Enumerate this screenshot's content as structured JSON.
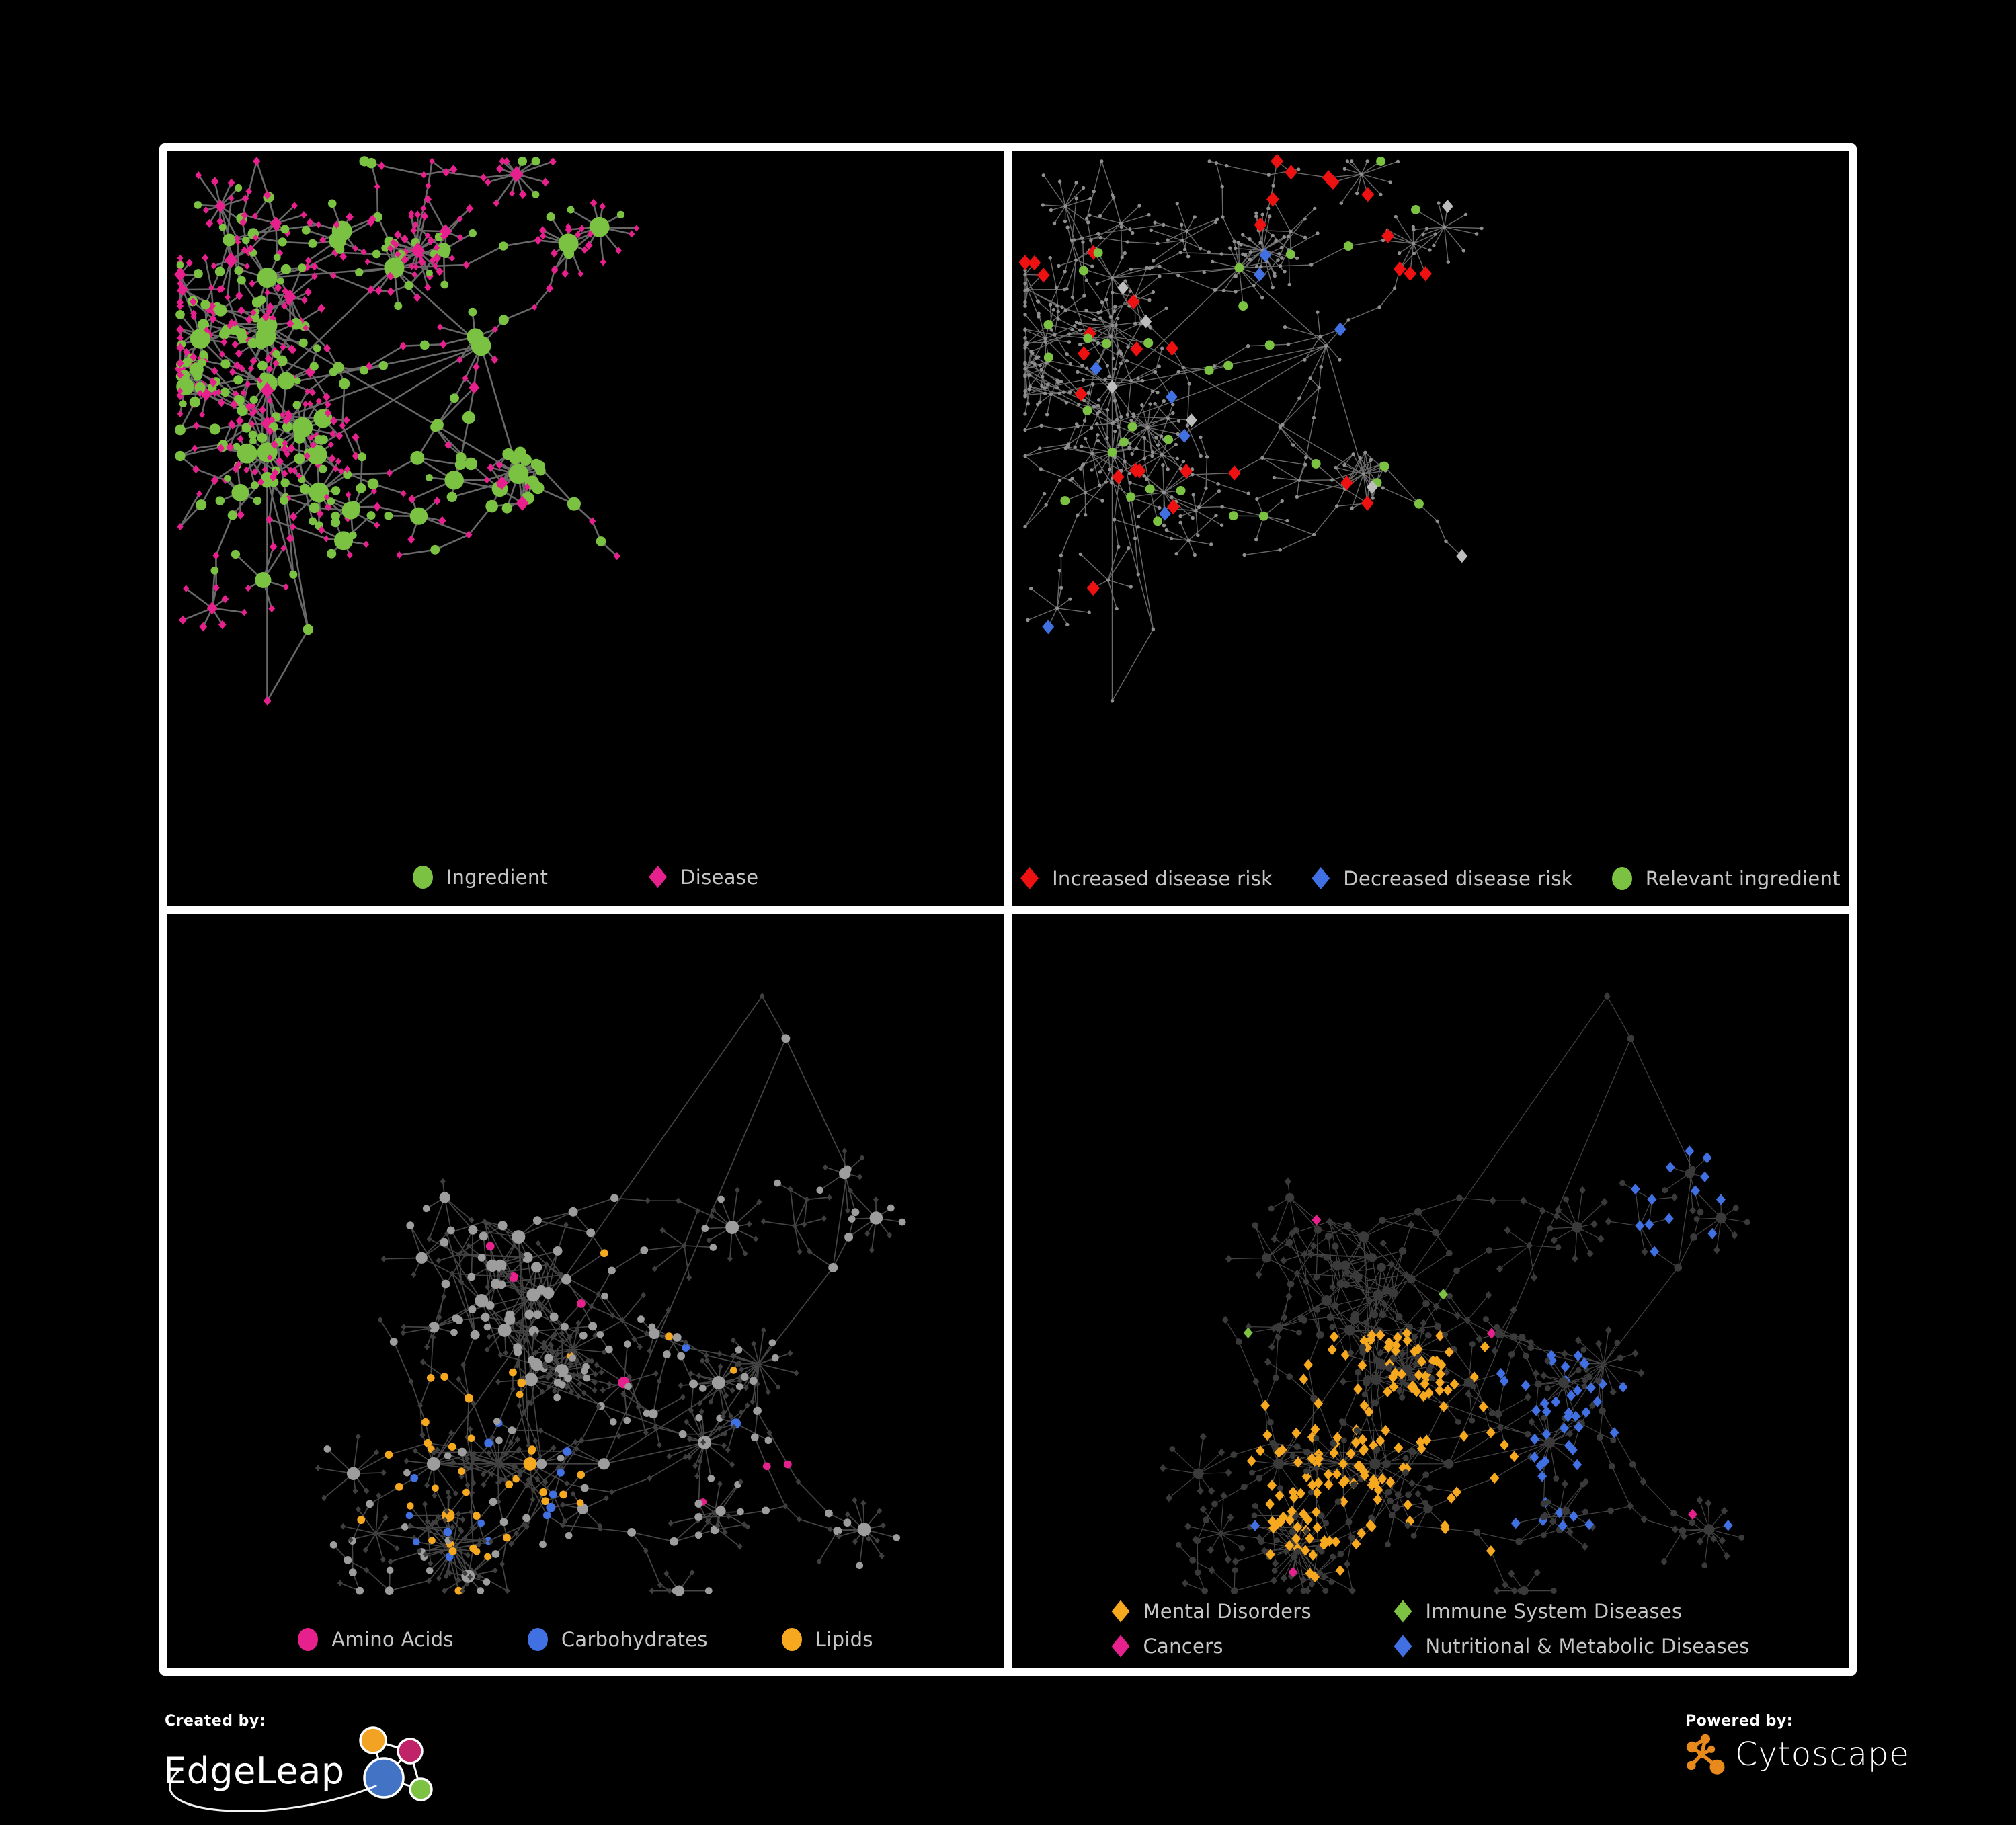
{
  "canvas": {
    "background": "#000000",
    "frame_color": "#ffffff"
  },
  "layouts": {
    "A": {
      "seed": 20,
      "hubs": 13,
      "super_bursts": 2,
      "max_nodes": 560
    },
    "B": {
      "seed": 77,
      "hubs": 14,
      "super_bursts": 3,
      "max_nodes": 560
    }
  },
  "panels": [
    {
      "id": "ingredient-disease",
      "layout": "A",
      "style": {
        "edge_color": "#737373",
        "edge_width": 2.6,
        "edge_opacity": 0.9,
        "ingredient_color": "#7cc242",
        "disease_color": "#e6208c"
      },
      "legend": [
        {
          "label": "Ingredient",
          "shape": "circle",
          "color": "#7cc242"
        },
        {
          "label": "Disease",
          "shape": "diamond",
          "color": "#e6208c"
        }
      ]
    },
    {
      "id": "disease-risk",
      "layout": "A",
      "style": {
        "edge_color": "#858585",
        "edge_width": 1.4,
        "edge_opacity": 0.8,
        "base_node_color": "#8f8f8f",
        "increased_color": "#ee1111",
        "decreased_color": "#4170e2",
        "neutral_color": "#bdbdbd",
        "relevant_color": "#7cc242"
      },
      "legend": [
        {
          "label": "Increased disease risk",
          "shape": "diamond",
          "color": "#ee1111"
        },
        {
          "label": "Decreased disease risk",
          "shape": "diamond",
          "color": "#4170e2"
        },
        {
          "label": "Relevant ingredient",
          "shape": "circle",
          "color": "#7cc242"
        }
      ]
    },
    {
      "id": "ingredient-classes",
      "layout": "B",
      "style": {
        "edge_color": "#8a8a8a",
        "edge_width": 1.7,
        "edge_opacity": 0.5,
        "ingredient_base_color": "#9d9d9d",
        "disease_dim_color": "#3f3f3f",
        "amino_color": "#e6208c",
        "carb_color": "#4170e2",
        "lipid_color": "#f6a81f"
      },
      "legend": [
        {
          "label": "Amino Acids",
          "shape": "circle",
          "color": "#e6208c"
        },
        {
          "label": "Carbohydrates",
          "shape": "circle",
          "color": "#4170e2"
        },
        {
          "label": "Lipids",
          "shape": "circle",
          "color": "#f6a81f"
        }
      ]
    },
    {
      "id": "disease-classes",
      "layout": "B",
      "style": {
        "edge_color": "#9a9a9a",
        "edge_width": 1.2,
        "edge_opacity": 0.45,
        "dim_color": "#3a3a3a",
        "mental_color": "#f6a81f",
        "immune_color": "#7dc242",
        "cancer_color": "#e6208c",
        "nutritional_color": "#4170e2"
      },
      "legend": [
        {
          "label": "Mental Disorders",
          "shape": "diamond",
          "color": "#f6a81f"
        },
        {
          "label": "Immune System Diseases",
          "shape": "diamond",
          "color": "#7dc242"
        },
        {
          "label": "Cancers",
          "shape": "diamond",
          "color": "#e6208c"
        },
        {
          "label": "Nutritional & Metabolic Diseases",
          "shape": "diamond",
          "color": "#4170e2"
        }
      ]
    }
  ],
  "footer": {
    "created_by": {
      "caption": "Created by:",
      "brand": "EdgeLeap",
      "icon_colors": {
        "orange": "#f2a324",
        "magenta": "#c02368",
        "blue": "#4273c4",
        "green": "#7dc242",
        "outline": "#ffffff"
      }
    },
    "powered_by": {
      "caption": "Powered by:",
      "brand": "Cytoscape",
      "accent": "#e8891c"
    }
  }
}
